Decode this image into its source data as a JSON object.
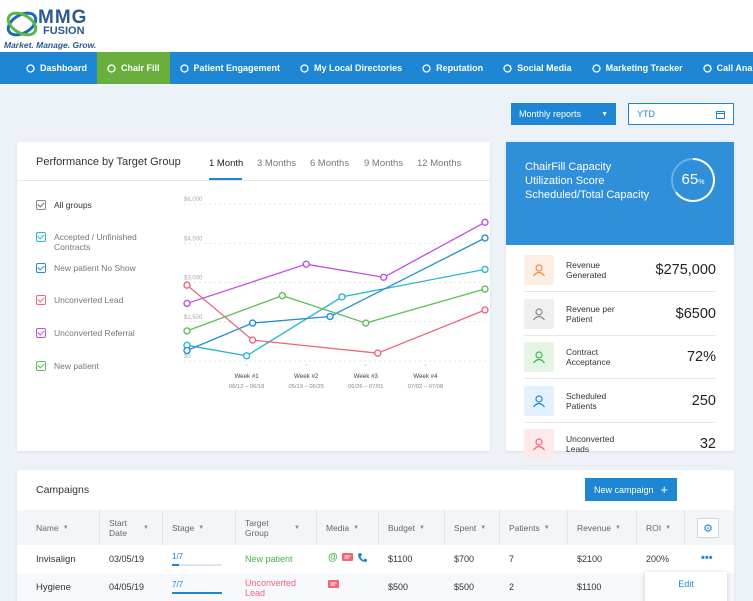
{
  "logo": {
    "name": "MMG",
    "sub": "FUSION",
    "tagline": "Market. Manage. Grow."
  },
  "nav": [
    "Dashboard",
    "Chair Fill",
    "Patient Engagement",
    "My Local Directories",
    "Reputation",
    "Social Media",
    "Marketing Tracker",
    "Call Analysis"
  ],
  "controls": {
    "report": "Monthly reports",
    "period": "YTD"
  },
  "performance": {
    "title": "Performance by Target Group",
    "tabs": [
      "1 Month",
      "3 Months",
      "6 Months",
      "9 Months",
      "12 Months"
    ],
    "all_groups": "All groups"
  },
  "chart_data": {
    "type": "line",
    "xlim": [
      0,
      5
    ],
    "xticks": [
      {
        "value": 1,
        "label": "Week #1"
      },
      {
        "value": 2,
        "label": "Week #2"
      },
      {
        "value": 3,
        "label": "Week #3"
      },
      {
        "value": 4,
        "label": "Week #4"
      }
    ],
    "xtick_dates": [
      "06/12 – 06/18",
      "05/19 – 06/25",
      "06/26 – 07/01",
      "07/02 – 07/08"
    ],
    "ylim": [
      0,
      6000
    ],
    "yticks": [
      {
        "value": 0,
        "label": "$0"
      },
      {
        "value": 1500,
        "label": "$1,500"
      },
      {
        "value": 3000,
        "label": "$3,000"
      },
      {
        "value": 4500,
        "label": "$4,500"
      },
      {
        "value": 6000,
        "label": "$6,000"
      }
    ],
    "grid": true,
    "series": [
      {
        "name": "Accepted / Unfinished Contracts",
        "color": "#2bb7c8",
        "x": [
          0,
          1,
          2.6,
          5
        ],
        "values": [
          600,
          200,
          2450,
          3500
        ]
      },
      {
        "name": "New patient No Show",
        "color": "#1f8fd8",
        "x": [
          0,
          1.1,
          2.4,
          5
        ],
        "values": [
          400,
          1450,
          1700,
          4700
        ]
      },
      {
        "name": "Unconverted Lead",
        "color": "#f0667a",
        "x": [
          0,
          1.1,
          3.2,
          5
        ],
        "values": [
          2900,
          800,
          300,
          1950
        ]
      },
      {
        "name": "Unconverted Referral",
        "color": "#c04fe0",
        "x": [
          0,
          2,
          3.3,
          5
        ],
        "values": [
          2200,
          3700,
          3200,
          5300
        ]
      },
      {
        "name": "New patient",
        "color": "#5cbf57",
        "x": [
          0,
          1.6,
          3,
          5
        ],
        "values": [
          1150,
          2500,
          1450,
          2750
        ]
      }
    ]
  },
  "capacity": {
    "title": [
      "ChairFill Capacity",
      "Utilization Score",
      "Scheduled/Total Capacity"
    ],
    "score": 65,
    "unit": "%"
  },
  "kpis": [
    {
      "label": "Revenue Generated",
      "value": "$275,000"
    },
    {
      "label": "Revenue per Patient",
      "value": "$6500"
    },
    {
      "label": "Contract Acceptance",
      "value": "72%"
    },
    {
      "label": "Scheduled Patients",
      "value": "250"
    },
    {
      "label": "Unconverted Leads",
      "value": "32"
    }
  ],
  "campaigns": {
    "title": "Campaigns",
    "button": "New campaign",
    "columns": [
      "Name",
      "Start Date",
      "Stage",
      "Target Group",
      "Media",
      "Budget",
      "Spent",
      "Patients",
      "Revenue",
      "ROI"
    ],
    "rows": [
      {
        "name": "Invisalign",
        "start": "03/05/19",
        "stage": "1/7",
        "target": "New patient",
        "budget": "$1100",
        "spent": "$700",
        "patients": "7",
        "revenue": "$2100",
        "roi": "200%"
      },
      {
        "name": "Hygiene",
        "start": "04/05/19",
        "stage": "7/7",
        "target": "Unconverted Lead",
        "budget": "$500",
        "spent": "$500",
        "patients": "2",
        "revenue": "$1100"
      }
    ],
    "menu": [
      "Edit"
    ]
  }
}
